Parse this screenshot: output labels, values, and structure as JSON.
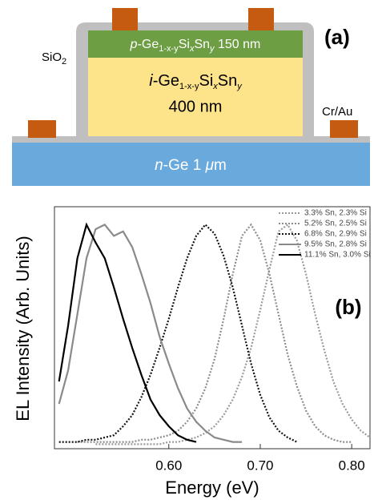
{
  "diagram": {
    "label": "(a)",
    "oxide": [
      "SiO",
      "2"
    ],
    "contact": "Cr/Au",
    "p_layer": [
      "p",
      "-Ge",
      "1-x-y",
      "Si",
      "x",
      "Sn",
      "y",
      " 150 nm"
    ],
    "i_layer": [
      "i",
      "-Ge",
      "1-x-y",
      "Si",
      "x",
      "Sn",
      "y"
    ],
    "i_thickness": "400 nm",
    "substrate": [
      "n",
      "-Ge 1 ",
      "μ",
      "m"
    ]
  },
  "chart_data": {
    "type": "line",
    "panel_label": "(b)",
    "x_label": "Energy (eV)",
    "y_label": "EL Intensity (Arb. Units)",
    "x": [
      0.48,
      0.49,
      0.5,
      0.51,
      0.52,
      0.53,
      0.54,
      0.55,
      0.56,
      0.57,
      0.58,
      0.59,
      0.6,
      0.61,
      0.62,
      0.63,
      0.64,
      0.65,
      0.66,
      0.67,
      0.68,
      0.69,
      0.7,
      0.71,
      0.72,
      0.73,
      0.74,
      0.75,
      0.76,
      0.77,
      0.78,
      0.79,
      0.8,
      0.81,
      0.82
    ],
    "xlim": [
      0.475,
      0.82
    ],
    "xticks": [
      {
        "value": 0.6,
        "label": "0.60"
      },
      {
        "value": 0.7,
        "label": "0.70"
      },
      {
        "value": 0.8,
        "label": "0.80"
      }
    ],
    "ylim": [
      0,
      1.08
    ],
    "legend": "upper right",
    "series": [
      {
        "name": "3.3% Sn, 2.3% Si",
        "color": "#9a9a9a",
        "dash": "dotted",
        "values": [
          null,
          null,
          null,
          null,
          0.02,
          0.02,
          0.02,
          0.02,
          0.02,
          0.02,
          0.02,
          0.02,
          0.03,
          0.03,
          0.04,
          0.05,
          0.07,
          0.1,
          0.15,
          0.22,
          0.32,
          0.45,
          0.62,
          0.8,
          0.97,
          1.0,
          0.93,
          0.78,
          0.6,
          0.44,
          0.3,
          0.2,
          0.13,
          0.08,
          0.05
        ]
      },
      {
        "name": "5.2% Sn, 2.5% Si",
        "color": "#8c8c8c",
        "dash": "dotted",
        "values": [
          null,
          null,
          0.03,
          0.03,
          0.03,
          0.03,
          0.03,
          0.03,
          0.03,
          0.04,
          0.04,
          0.05,
          0.06,
          0.08,
          0.12,
          0.18,
          0.27,
          0.4,
          0.58,
          0.78,
          0.95,
          1.0,
          0.93,
          0.78,
          0.6,
          0.42,
          0.28,
          0.17,
          0.1,
          0.06,
          0.04,
          0.03,
          0.03,
          null,
          null
        ]
      },
      {
        "name": "6.8% Sn, 2.9% Si",
        "color": "#111111",
        "dash": "dotted",
        "values": [
          0.03,
          0.03,
          0.03,
          0.04,
          0.04,
          0.05,
          0.06,
          0.1,
          0.15,
          0.23,
          0.33,
          0.45,
          0.58,
          0.72,
          0.85,
          0.95,
          1.0,
          0.96,
          0.86,
          0.72,
          0.55,
          0.38,
          0.24,
          0.14,
          0.08,
          0.05,
          0.03,
          null,
          null,
          null,
          null,
          null,
          null,
          null,
          null
        ]
      },
      {
        "name": "9.5% Sn, 2.8% Si",
        "color": "#8a8a8a",
        "dash": "solid",
        "values": [
          0.2,
          0.35,
          0.6,
          0.85,
          0.98,
          1.0,
          0.95,
          0.97,
          0.9,
          0.78,
          0.65,
          0.5,
          0.38,
          0.27,
          0.18,
          0.12,
          0.08,
          0.05,
          0.04,
          0.03,
          0.03,
          null,
          null,
          null,
          null,
          null,
          null,
          null,
          null,
          null,
          null,
          null,
          null,
          null,
          null
        ]
      },
      {
        "name": "11.1% Sn, 3.0% Si",
        "color": "#000000",
        "dash": "solid",
        "values": [
          0.3,
          0.55,
          0.85,
          1.0,
          0.92,
          0.85,
          0.72,
          0.58,
          0.45,
          0.33,
          0.22,
          0.15,
          0.1,
          0.06,
          0.04,
          0.03,
          null,
          null,
          null,
          null,
          null,
          null,
          null,
          null,
          null,
          null,
          null,
          null,
          null,
          null,
          null,
          null,
          null,
          null,
          null
        ]
      }
    ]
  }
}
